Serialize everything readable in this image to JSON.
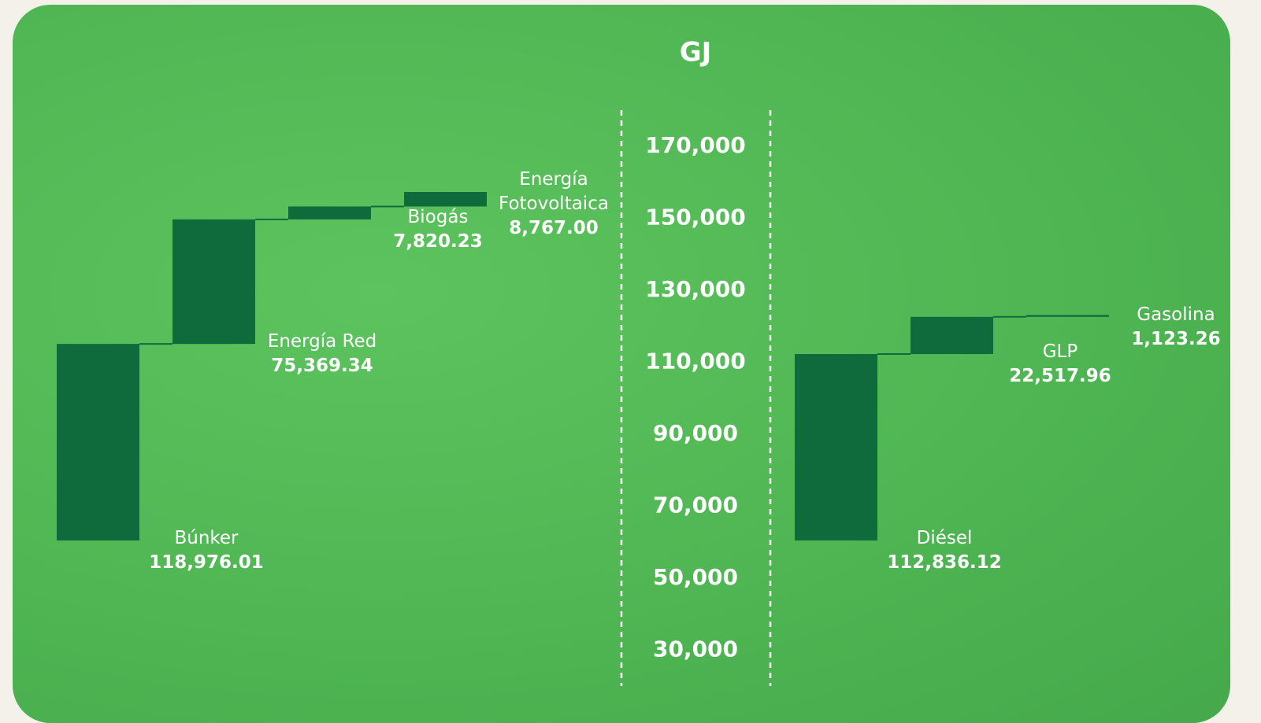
{
  "chart_data": [
    {
      "type": "waterfall",
      "ylabel": "GJ",
      "color": "#0f6a3c",
      "ylim": [
        20000,
        180000
      ],
      "yticks": [
        {
          "value": 170000,
          "label": "170,000"
        },
        {
          "value": 150000,
          "label": "150,000"
        },
        {
          "value": 130000,
          "label": "130,000"
        },
        {
          "value": 110000,
          "label": "110,000"
        },
        {
          "value": 90000,
          "label": "90,000"
        },
        {
          "value": 70000,
          "label": "70,000"
        },
        {
          "value": 50000,
          "label": "50,000"
        },
        {
          "value": 30000,
          "label": "30,000"
        }
      ],
      "categories": [
        "Búnker",
        "Energía Red",
        "Biogás",
        "Energía Fotovoltaica"
      ],
      "values": [
        118976.01,
        75369.34,
        7820.23,
        8767.0
      ],
      "value_labels": [
        "118,976.01",
        "75,369.34",
        "7,820.23",
        "8,767.00"
      ]
    },
    {
      "type": "waterfall",
      "color": "#0f6a3c",
      "categories": [
        "Diésel",
        "GLP",
        "Gasolina"
      ],
      "values": [
        112836.12,
        22517.96,
        1123.26
      ],
      "value_labels": [
        "112,836.12",
        "22,517.96",
        "1,123.26"
      ]
    }
  ]
}
